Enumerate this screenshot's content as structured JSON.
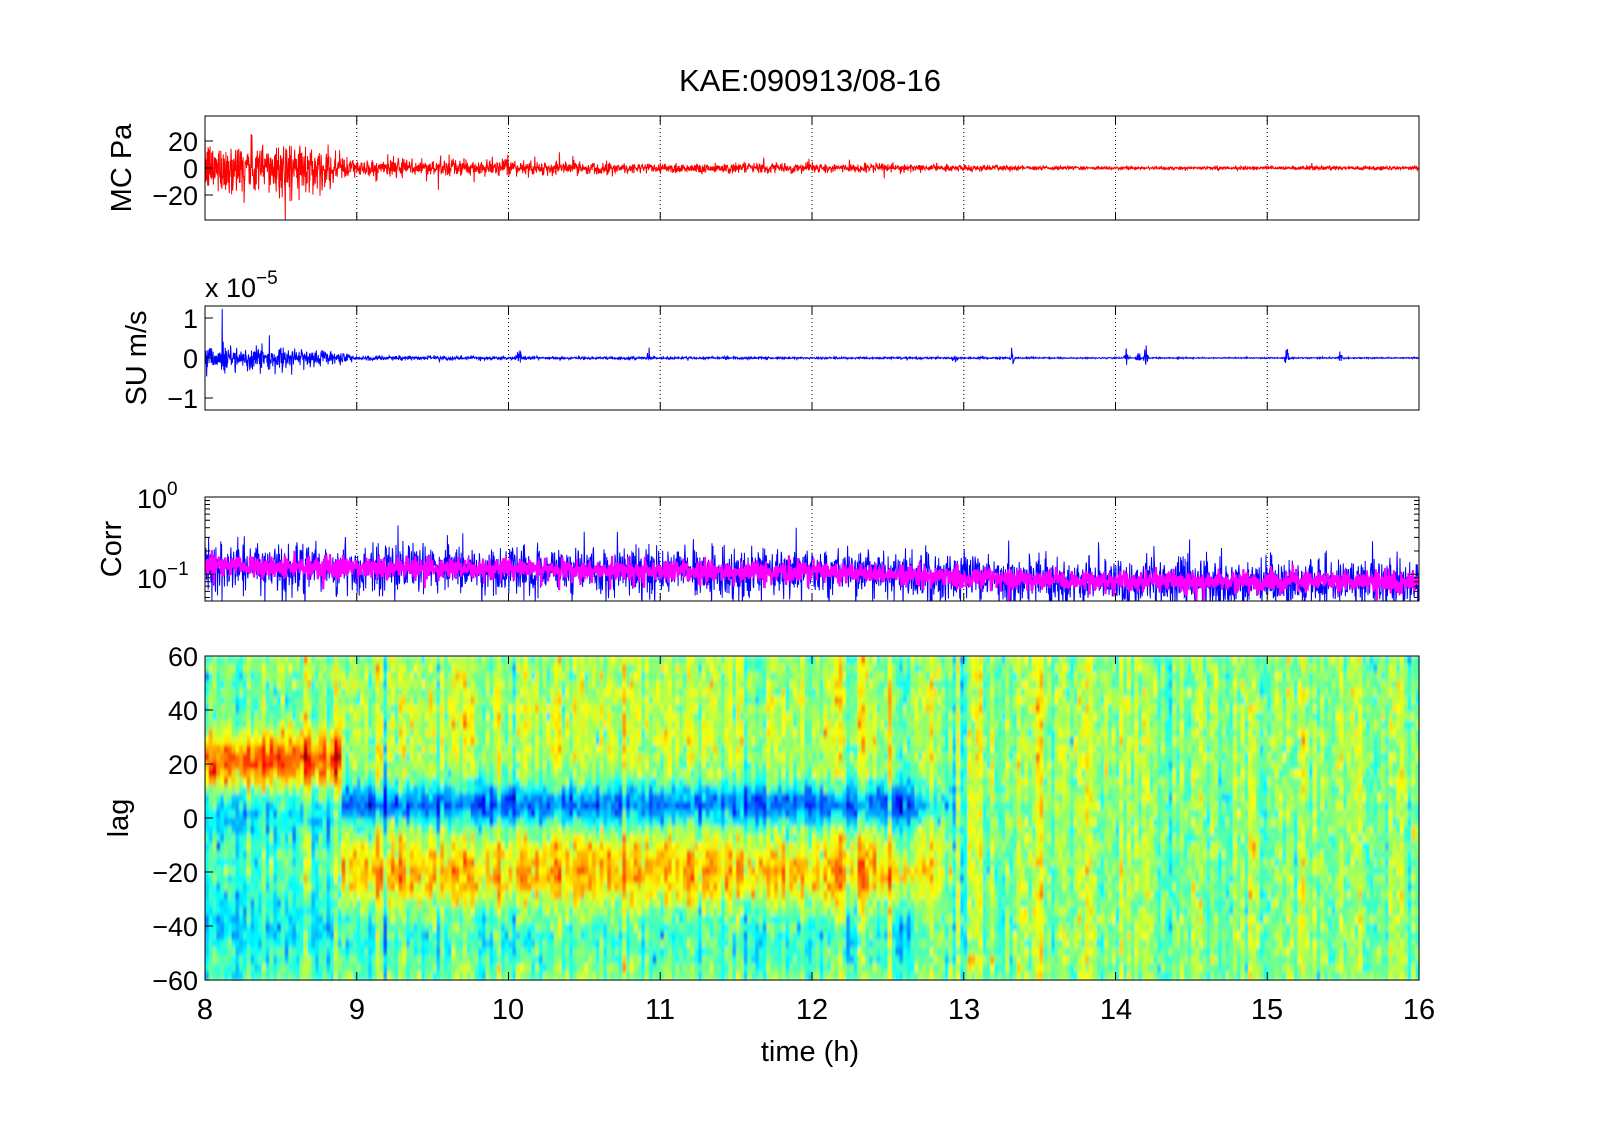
{
  "figure": {
    "title": "KAE:090913/08-16",
    "xlabel": "time (h)",
    "x_tick_labels": [
      "8",
      "9",
      "10",
      "11",
      "12",
      "13",
      "14",
      "15",
      "16"
    ]
  },
  "panels": {
    "mc": {
      "ylabel": "MC Pa",
      "tick_labels": [
        "20",
        "0",
        "−20"
      ]
    },
    "su": {
      "ylabel": "SU m/s",
      "tick_labels": [
        "1",
        "0",
        "−1"
      ],
      "exponent": "x 10",
      "exponent_power": "−5"
    },
    "corr": {
      "ylabel": "Corr",
      "tick_labels": [
        {
          "base": "10",
          "power": "0"
        },
        {
          "base": "10",
          "power": "−1"
        }
      ]
    },
    "lag": {
      "ylabel": "lag",
      "tick_labels": [
        "60",
        "40",
        "20",
        "0",
        "−20",
        "−40",
        "−60"
      ]
    }
  },
  "chart_data": [
    {
      "type": "line",
      "panel": "mc",
      "title": "KAE:090913/08-16",
      "ylabel": "MC Pa",
      "xlim": [
        8,
        16
      ],
      "ylim": [
        -38,
        38
      ],
      "y_ticks": [
        20,
        0,
        -20
      ],
      "grid": "vertical dotted",
      "series": [
        {
          "color": "#ff0000",
          "envelope_x": [
            8,
            8.5,
            8.9,
            9,
            9.5,
            10,
            10.5,
            11,
            11.5,
            12,
            12.5,
            13,
            13.5,
            14,
            14.5,
            15,
            15.5,
            16
          ],
          "envelope_amplitude": [
            24,
            28,
            14,
            8,
            9,
            7,
            6,
            5,
            5,
            4.5,
            4,
            3,
            2,
            1.5,
            1.5,
            1.5,
            2,
            2
          ]
        }
      ]
    },
    {
      "type": "line",
      "panel": "su",
      "ylabel": "SU m/s",
      "y_scale_factor": "x 10^-5",
      "xlim": [
        8,
        16
      ],
      "ylim": [
        -1.3,
        1.3
      ],
      "y_ticks": [
        1,
        0,
        -1
      ],
      "grid": "vertical dotted",
      "series": [
        {
          "color": "#0000ff",
          "envelope_x": [
            8,
            8.5,
            8.9,
            9,
            9.5,
            10,
            11,
            12,
            13,
            14,
            15,
            16
          ],
          "envelope_amplitude": [
            0.4,
            0.35,
            0.2,
            0.08,
            0.07,
            0.05,
            0.04,
            0.03,
            0.03,
            0.02,
            0.02,
            0.02
          ],
          "spikes": [
            {
              "x": 8.12,
              "amplitude": 1.1
            },
            {
              "x": 10.07,
              "amplitude": 0.5
            },
            {
              "x": 10.92,
              "amplitude": 0.3
            },
            {
              "x": 12.95,
              "amplitude": 0.2
            },
            {
              "x": 13.32,
              "amplitude": 0.35
            },
            {
              "x": 14.07,
              "amplitude": 0.35
            },
            {
              "x": 14.15,
              "amplitude": 0.4
            },
            {
              "x": 14.2,
              "amplitude": 0.5
            },
            {
              "x": 15.13,
              "amplitude": 0.45
            },
            {
              "x": 15.48,
              "amplitude": 0.2
            }
          ]
        }
      ]
    },
    {
      "type": "line",
      "panel": "corr",
      "ylabel": "Corr",
      "y_scale": "log",
      "xlim": [
        8,
        16
      ],
      "ylim": [
        0.045,
        1
      ],
      "y_ticks": [
        1,
        0.1
      ],
      "grid": "vertical dotted",
      "series": [
        {
          "color": "#0000ff",
          "level_x": [
            8,
            9,
            10,
            11,
            12,
            13,
            14,
            15,
            16
          ],
          "level": [
            0.13,
            0.12,
            0.12,
            0.11,
            0.11,
            0.09,
            0.08,
            0.08,
            0.08
          ]
        },
        {
          "color": "#ff00ff",
          "level_x": [
            8,
            9,
            10,
            11,
            12,
            13,
            14,
            15,
            16
          ],
          "level": [
            0.13,
            0.12,
            0.12,
            0.11,
            0.11,
            0.09,
            0.08,
            0.08,
            0.08
          ]
        }
      ]
    },
    {
      "type": "heatmap",
      "panel": "lag",
      "ylabel": "lag",
      "xlabel": "time (h)",
      "xlim": [
        8,
        16
      ],
      "ylim": [
        -60,
        60
      ],
      "y_ticks": [
        60,
        40,
        20,
        0,
        -20,
        -40,
        -60
      ],
      "x_ticks": [
        8,
        9,
        10,
        11,
        12,
        13,
        14,
        15,
        16
      ],
      "colormap": "jet",
      "features": [
        {
          "name": "positive band",
          "x_range": [
            8,
            8.9
          ],
          "lag_range": [
            8,
            35
          ],
          "level": "high (red)"
        },
        {
          "name": "negative band",
          "x_range": [
            8.9,
            13
          ],
          "lag_range": [
            -2,
            12
          ],
          "level": "low (blue)"
        },
        {
          "name": "positive band",
          "x_range": [
            8.9,
            13
          ],
          "lag_range": [
            -35,
            -5
          ],
          "level": "high (orange)"
        }
      ]
    }
  ]
}
